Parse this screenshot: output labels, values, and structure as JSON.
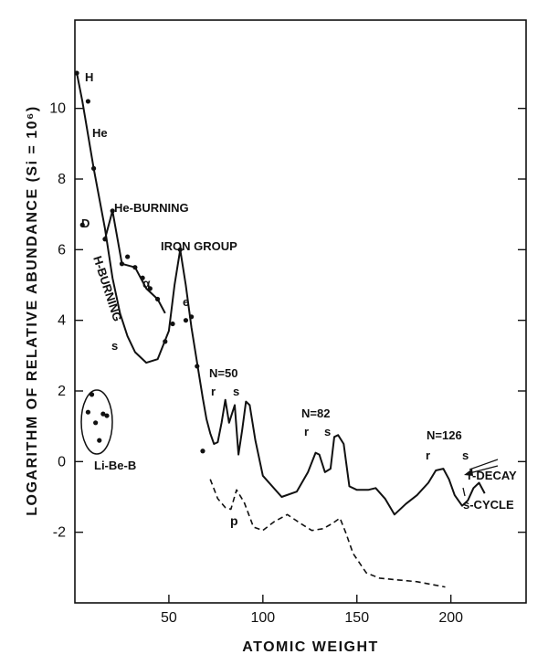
{
  "chart_data": {
    "type": "line",
    "xlabel": "ATOMIC WEIGHT",
    "ylabel": "LOGARITHM OF RELATIVE ABUNDANCE (Si = 10⁶)",
    "xlim": [
      0,
      240
    ],
    "ylim": [
      -4,
      12.5
    ],
    "x_ticks": [
      50,
      100,
      150,
      200
    ],
    "x_tick_labels": [
      "50",
      "100",
      "150",
      "200"
    ],
    "y_ticks": [
      -2,
      0,
      2,
      4,
      6,
      8,
      10
    ],
    "y_tick_labels": [
      "-2",
      "0",
      "2",
      "4",
      "6",
      "8",
      "10"
    ],
    "grid": false,
    "series": [
      {
        "style": "solid",
        "x": [
          1,
          4,
          10,
          16,
          20,
          24,
          28,
          32,
          38,
          44,
          50,
          53,
          56,
          59,
          62,
          65,
          68,
          70,
          72,
          74,
          76,
          78,
          80,
          82,
          85,
          87,
          89,
          91,
          93,
          96,
          100,
          110,
          118,
          124,
          128,
          130,
          133,
          136,
          138,
          140,
          143,
          146,
          150,
          156,
          160,
          165,
          170,
          176,
          182,
          188,
          192,
          196,
          199,
          202,
          206,
          209,
          212,
          215,
          218
        ],
        "y": [
          11.0,
          10.2,
          8.3,
          6.6,
          5.2,
          4.2,
          3.55,
          3.1,
          2.8,
          2.9,
          3.7,
          5.0,
          6.0,
          5.0,
          3.8,
          2.8,
          1.8,
          1.2,
          0.8,
          0.5,
          0.55,
          1.1,
          1.75,
          1.1,
          1.6,
          0.2,
          0.9,
          1.7,
          1.6,
          0.6,
          -0.4,
          -1.0,
          -0.85,
          -0.3,
          0.25,
          0.2,
          -0.3,
          -0.2,
          0.7,
          0.75,
          0.5,
          -0.7,
          -0.8,
          -0.8,
          -0.75,
          -1.05,
          -1.5,
          -1.2,
          -0.95,
          -0.6,
          -0.25,
          -0.2,
          -0.5,
          -0.95,
          -1.25,
          -1.1,
          -0.75,
          -0.6,
          -0.9
        ]
      },
      {
        "style": "dashed",
        "x": [
          72,
          76,
          80,
          83,
          86,
          90,
          95,
          100,
          106,
          113,
          120,
          126,
          132,
          137,
          141,
          144,
          148,
          155,
          162,
          172,
          182,
          192,
          197
        ],
        "y": [
          -0.5,
          -1.05,
          -1.3,
          -1.35,
          -0.8,
          -1.15,
          -1.85,
          -1.95,
          -1.7,
          -1.5,
          -1.75,
          -1.95,
          -1.9,
          -1.75,
          -1.6,
          -2.0,
          -2.6,
          -3.15,
          -3.3,
          -3.35,
          -3.4,
          -3.5,
          -3.55
        ]
      },
      {
        "style": "solid",
        "x": [
          16,
          20,
          25,
          32,
          38,
          44,
          48
        ],
        "y": [
          6.3,
          7.1,
          5.6,
          5.5,
          4.9,
          4.6,
          4.2
        ]
      }
    ],
    "points": {
      "x": [
        1,
        4,
        7,
        10,
        16,
        20,
        25,
        28,
        32,
        36,
        40,
        44,
        48,
        52,
        56,
        59,
        62,
        65,
        68
      ],
      "y": [
        11.0,
        6.7,
        10.2,
        8.3,
        6.3,
        7.1,
        5.6,
        5.8,
        5.5,
        5.2,
        4.9,
        4.6,
        3.4,
        3.9,
        6.0,
        4.0,
        4.1,
        2.7,
        0.3
      ]
    },
    "li_be_b_points": {
      "x": [
        7,
        9,
        11,
        13,
        15,
        17
      ],
      "y": [
        1.4,
        1.9,
        1.1,
        0.6,
        1.35,
        1.3
      ]
    },
    "annotations": [
      "H",
      "He",
      "D",
      "He-BURNING",
      "H-BURNING",
      "s",
      "α",
      "IRON GROUP",
      "e",
      "N=50",
      "r",
      "s",
      "N=82",
      "r",
      "s",
      "N=126",
      "r",
      "s",
      "r-DECAY",
      "s-CYCLE",
      "p",
      "Li-Be-B"
    ]
  }
}
